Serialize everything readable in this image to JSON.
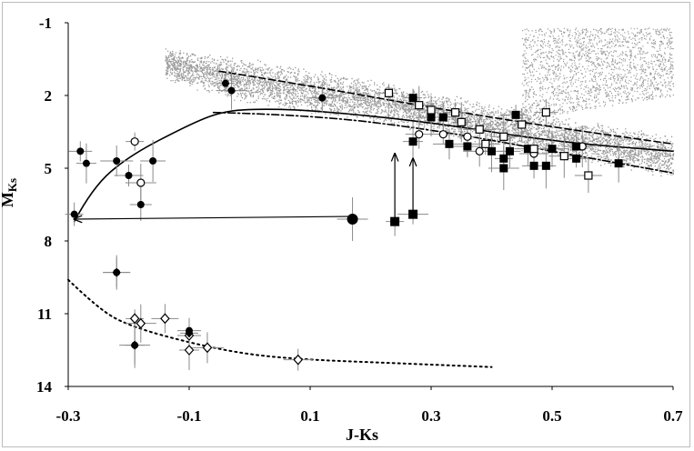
{
  "chart_data": {
    "type": "scatter",
    "xlabel": "J-Ks",
    "ylabel": "MKs",
    "ylabel_main": "M",
    "ylabel_sub": "Ks",
    "xlim": [
      -0.3,
      0.7
    ],
    "ylim": [
      14,
      -1
    ],
    "y_inverted": true,
    "grid": false,
    "legend": "none",
    "xticks": [
      "-0.3",
      "-0.1",
      "0.1",
      "0.3",
      "0.5",
      "0.7"
    ],
    "yticks": [
      "-1",
      "2",
      "5",
      "8",
      "11",
      "14"
    ],
    "xtick_values": [
      -0.3,
      -0.1,
      0.1,
      0.3,
      0.5,
      0.7
    ],
    "ytick_values": [
      -1,
      2,
      5,
      8,
      11,
      14
    ],
    "background_cloud": {
      "description_color": "#9a9a9a",
      "main_band_upper": [
        [
          -0.14,
          0.0
        ],
        [
          0.0,
          0.4
        ],
        [
          0.2,
          1.3
        ],
        [
          0.4,
          2.3
        ],
        [
          0.6,
          3.2
        ],
        [
          0.7,
          3.6
        ]
      ],
      "main_band_lower": [
        [
          -0.14,
          1.4
        ],
        [
          0.0,
          2.4
        ],
        [
          0.2,
          3.1
        ],
        [
          0.4,
          4.1
        ],
        [
          0.6,
          5.0
        ],
        [
          0.7,
          5.4
        ]
      ]
    },
    "series": [
      {
        "marker": "filled-circle",
        "color": "#000000",
        "points": [
          [
            -0.04,
            1.5
          ],
          [
            -0.03,
            1.8
          ],
          [
            0.12,
            2.1
          ],
          [
            -0.28,
            4.3
          ],
          [
            -0.27,
            4.8
          ],
          [
            -0.22,
            4.7
          ],
          [
            -0.2,
            5.3
          ],
          [
            -0.16,
            4.7
          ],
          [
            -0.18,
            6.5
          ],
          [
            -0.29,
            6.9
          ],
          [
            0.17,
            7.1
          ],
          [
            -0.22,
            9.3
          ],
          [
            -0.1,
            11.7
          ],
          [
            -0.19,
            12.3
          ]
        ]
      },
      {
        "marker": "open-circle",
        "color": "#000000",
        "points": [
          [
            -0.19,
            3.9
          ],
          [
            -0.18,
            5.6
          ],
          [
            0.28,
            3.6
          ],
          [
            0.32,
            3.6
          ],
          [
            0.36,
            3.7
          ],
          [
            0.38,
            4.3
          ],
          [
            0.47,
            4.4
          ],
          [
            0.55,
            4.1
          ]
        ]
      },
      {
        "marker": "filled-square",
        "color": "#000000",
        "points": [
          [
            0.27,
            2.1
          ],
          [
            0.3,
            2.9
          ],
          [
            0.32,
            2.9
          ],
          [
            0.44,
            2.8
          ],
          [
            0.27,
            3.9
          ],
          [
            0.33,
            4.0
          ],
          [
            0.36,
            4.1
          ],
          [
            0.4,
            4.3
          ],
          [
            0.43,
            4.3
          ],
          [
            0.42,
            4.6
          ],
          [
            0.42,
            5.0
          ],
          [
            0.46,
            4.2
          ],
          [
            0.47,
            4.9
          ],
          [
            0.49,
            4.9
          ],
          [
            0.5,
            4.2
          ],
          [
            0.54,
            4.1
          ],
          [
            0.54,
            4.6
          ],
          [
            0.61,
            4.8
          ],
          [
            0.24,
            7.2
          ],
          [
            0.27,
            6.9
          ]
        ]
      },
      {
        "marker": "open-square",
        "color": "#000000",
        "points": [
          [
            0.23,
            1.9
          ],
          [
            0.28,
            2.4
          ],
          [
            0.3,
            2.6
          ],
          [
            0.34,
            2.7
          ],
          [
            0.35,
            3.1
          ],
          [
            0.38,
            3.4
          ],
          [
            0.39,
            4.0
          ],
          [
            0.42,
            3.7
          ],
          [
            0.45,
            3.2
          ],
          [
            0.47,
            4.2
          ],
          [
            0.52,
            4.5
          ],
          [
            0.56,
            5.3
          ],
          [
            0.49,
            2.7
          ]
        ]
      },
      {
        "marker": "open-diamond",
        "color": "#000000",
        "points": [
          [
            -0.19,
            11.2
          ],
          [
            -0.18,
            11.4
          ],
          [
            -0.14,
            11.2
          ],
          [
            -0.1,
            11.9
          ],
          [
            -0.1,
            12.5
          ],
          [
            -0.07,
            12.4
          ],
          [
            0.08,
            12.9
          ]
        ]
      },
      {
        "marker": "filled-diamond",
        "color": "#000000",
        "points": [
          [
            -0.1,
            11.8
          ],
          [
            -0.19,
            12.3
          ],
          [
            -0.22,
            9.3
          ]
        ]
      }
    ],
    "curves": [
      {
        "style": "dashed",
        "points": [
          [
            -0.05,
            1.0
          ],
          [
            0.1,
            1.6
          ],
          [
            0.3,
            2.5
          ],
          [
            0.5,
            3.3
          ],
          [
            0.7,
            4.0
          ]
        ]
      },
      {
        "style": "solid",
        "points": [
          [
            -0.29,
            7.2
          ],
          [
            -0.26,
            5.8
          ],
          [
            -0.2,
            4.5
          ],
          [
            -0.1,
            3.2
          ],
          [
            -0.05,
            2.7
          ],
          [
            0.0,
            2.55
          ],
          [
            0.1,
            2.6
          ],
          [
            0.3,
            3.1
          ],
          [
            0.5,
            3.9
          ],
          [
            0.7,
            4.3
          ]
        ]
      },
      {
        "style": "dash-dot",
        "points": [
          [
            -0.06,
            2.7
          ],
          [
            0.1,
            2.8
          ],
          [
            0.3,
            3.4
          ],
          [
            0.5,
            4.3
          ],
          [
            0.7,
            5.2
          ]
        ]
      },
      {
        "style": "dotted",
        "points": [
          [
            -0.3,
            9.6
          ],
          [
            -0.25,
            10.8
          ],
          [
            -0.2,
            11.5
          ],
          [
            -0.1,
            12.2
          ],
          [
            0.0,
            12.7
          ],
          [
            0.1,
            12.9
          ],
          [
            0.2,
            13.0
          ],
          [
            0.3,
            13.1
          ],
          [
            0.4,
            13.2
          ]
        ]
      }
    ],
    "arrows": [
      {
        "from": [
          0.17,
          7.1
        ],
        "to": [
          -0.29,
          7.1
        ]
      },
      {
        "from": [
          0.24,
          7.2
        ],
        "to": [
          0.24,
          4.4
        ]
      },
      {
        "from": [
          0.27,
          6.9
        ],
        "to": [
          0.27,
          4.6
        ]
      }
    ]
  }
}
